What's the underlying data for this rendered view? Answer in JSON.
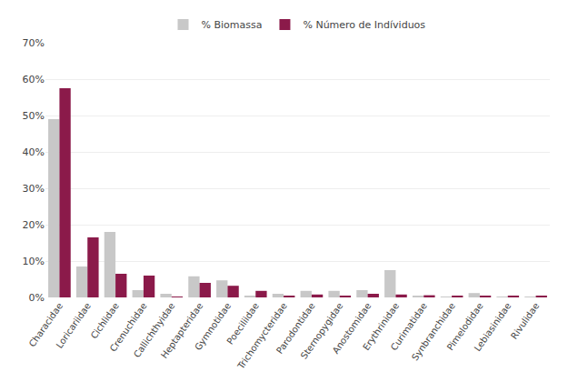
{
  "chart_data": {
    "type": "bar",
    "categories": [
      "Characidae",
      "Loricariidae",
      "Cichlidae",
      "Crenuchidae",
      "Callichthyidae",
      "Heptapteridae",
      "Gymnotidae",
      "Poeciliidae",
      "Trichomycteridae",
      "Parodontidae",
      "Sternopygidae",
      "Anostomidae",
      "Erythrinidae",
      "Curimatidae",
      "Synbranchidae",
      "Pimelodidae",
      "Lebiasinidae",
      "Rivulidae"
    ],
    "series": [
      {
        "name": "% Biomassa",
        "color": "#c8c8c8",
        "values": [
          49,
          8.5,
          18,
          2.0,
          1.0,
          5.8,
          4.7,
          0.3,
          1.0,
          1.8,
          1.8,
          2.0,
          7.5,
          0.5,
          0.2,
          1.2,
          0.2,
          0.2
        ]
      },
      {
        "name": "% Número de Indíviduos",
        "color": "#8b1a4a",
        "values": [
          57.5,
          16.5,
          6.5,
          6.0,
          0.2,
          4.0,
          3.2,
          1.8,
          0.5,
          0.8,
          0.4,
          1.0,
          0.8,
          0.6,
          0.5,
          0.5,
          0.5,
          0.5
        ]
      }
    ],
    "ylim": [
      0,
      70
    ],
    "yticks": [
      {
        "value": 0,
        "label": "0%"
      },
      {
        "value": 10,
        "label": "10%"
      },
      {
        "value": 20,
        "label": "20%"
      },
      {
        "value": 30,
        "label": "30%"
      },
      {
        "value": 40,
        "label": "40%"
      },
      {
        "value": 50,
        "label": "50%"
      },
      {
        "value": 60,
        "label": "60%"
      },
      {
        "value": 70,
        "label": "70%"
      }
    ],
    "grid": true,
    "legend": "top"
  }
}
